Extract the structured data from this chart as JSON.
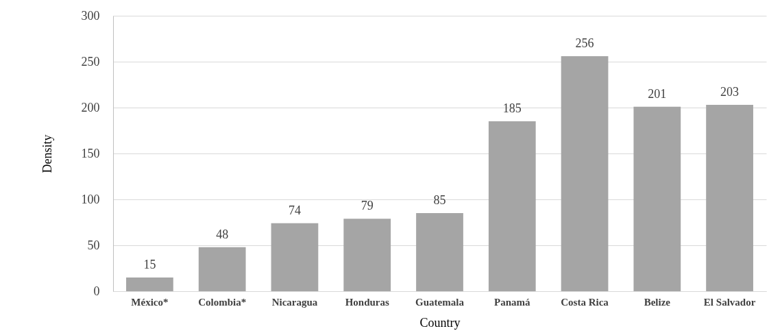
{
  "chart_data": {
    "type": "bar",
    "xlabel": "Country",
    "ylabel": "Density",
    "categories": [
      "México*",
      "Colombia*",
      "Nicaragua",
      "Honduras",
      "Guatemala",
      "Panamá",
      "Costa Rica",
      "Belize",
      "El Salvador"
    ],
    "values": [
      15,
      48,
      74,
      79,
      85,
      185,
      256,
      201,
      203
    ],
    "color": "#a5a5a5",
    "ylim": [
      0,
      300
    ],
    "yticks": [
      0,
      50,
      100,
      150,
      200,
      250,
      300
    ],
    "grid": "y",
    "data_labels": true
  }
}
